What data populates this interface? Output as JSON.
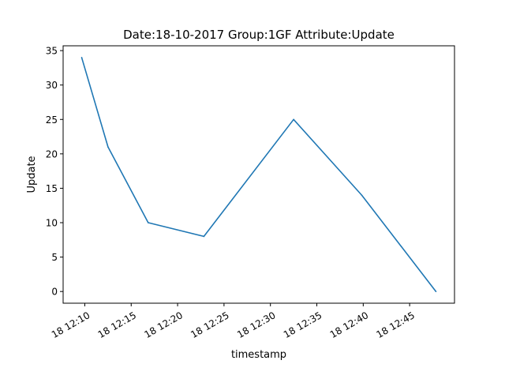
{
  "chart_data": {
    "type": "line",
    "title": "Date:18-10-2017  Group:1GF Attribute:Update",
    "xlabel": "timestamp",
    "ylabel": "Update",
    "x": [
      "2017-10-18 12:09:40",
      "2017-10-18 12:12:30",
      "2017-10-18 12:16:50",
      "2017-10-18 12:22:50",
      "2017-10-18 12:32:30",
      "2017-10-18 12:39:50",
      "2017-10-18 12:47:50"
    ],
    "series": [
      {
        "values": [
          34,
          21,
          10,
          8,
          25,
          14,
          0
        ],
        "color": "#1f77b4"
      }
    ],
    "xlim": [
      "2017-10-18 12:07:40",
      "2017-10-18 12:49:50"
    ],
    "ylim": [
      -1.7,
      35.7
    ],
    "xticks": [
      "2017-10-18 12:10:00",
      "2017-10-18 12:15:00",
      "2017-10-18 12:20:00",
      "2017-10-18 12:25:00",
      "2017-10-18 12:30:00",
      "2017-10-18 12:35:00",
      "2017-10-18 12:40:00",
      "2017-10-18 12:45:00"
    ],
    "xtick_labels": [
      "18 12:10",
      "18 12:15",
      "18 12:20",
      "18 12:25",
      "18 12:30",
      "18 12:35",
      "18 12:40",
      "18 12:45"
    ],
    "yticks": [
      0,
      5,
      10,
      15,
      20,
      25,
      30,
      35
    ],
    "ytick_labels": [
      "0",
      "5",
      "10",
      "15",
      "20",
      "25",
      "30",
      "35"
    ],
    "grid": false,
    "legend": "none"
  }
}
